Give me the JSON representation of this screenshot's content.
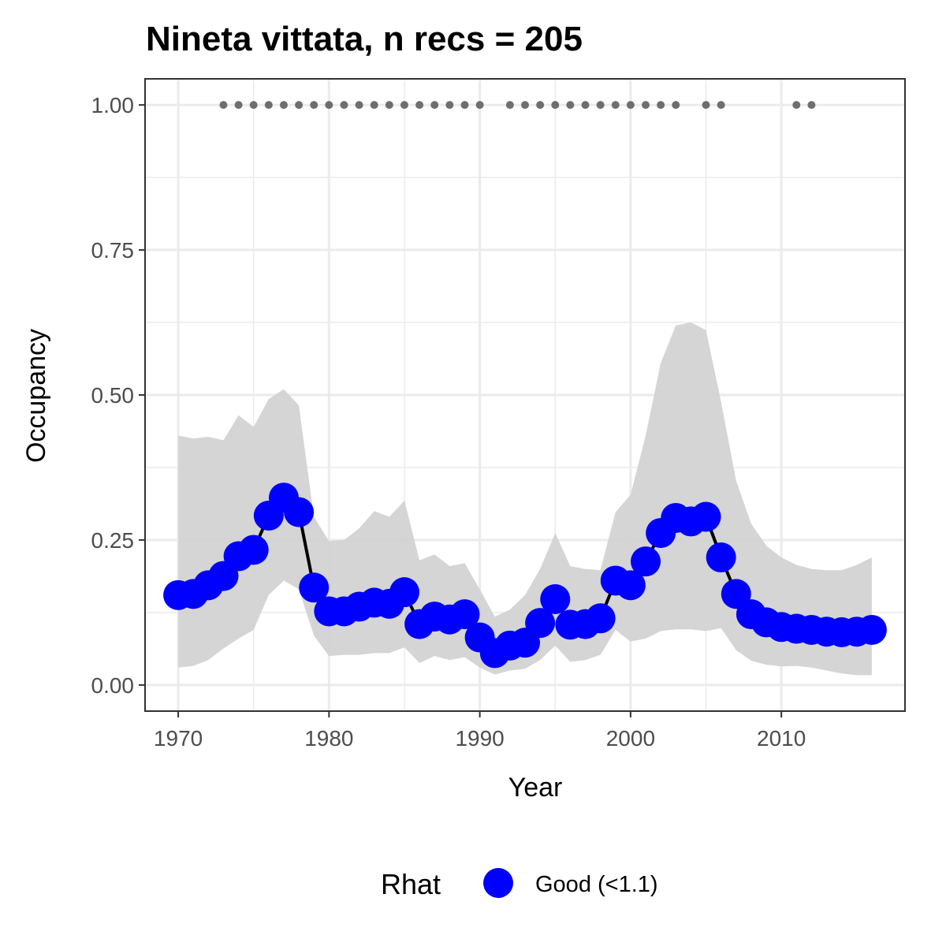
{
  "chart_data": {
    "type": "line",
    "title": "Nineta vittata, n recs = 205",
    "xlabel": "Year",
    "ylabel": "Occupancy",
    "xlim": [
      1967.8,
      2018.2
    ],
    "ylim": [
      -0.045,
      1.045
    ],
    "x_ticks": [
      1970,
      1980,
      1990,
      2000,
      2010
    ],
    "x_tick_labels": [
      "1970",
      "1980",
      "1990",
      "2000",
      "2010"
    ],
    "y_ticks": [
      0,
      0.25,
      0.5,
      0.75,
      1.0
    ],
    "y_tick_labels": [
      "0.00",
      "0.25",
      "0.50",
      "0.75",
      "1.00"
    ],
    "grid": true,
    "legend": {
      "title": "Rhat",
      "position": "bottom",
      "entries": [
        {
          "label": "Good (<1.1)",
          "color": "#0000ff"
        }
      ]
    },
    "colors": {
      "points": "#0000ff",
      "line": "#000000",
      "ribbon": "#d3d3d3",
      "records": "#6e6e6e",
      "grid": "#ebebeb",
      "panel_border": "#333333"
    },
    "x": [
      1970,
      1971,
      1972,
      1973,
      1974,
      1975,
      1976,
      1977,
      1978,
      1979,
      1980,
      1981,
      1982,
      1983,
      1984,
      1985,
      1986,
      1987,
      1988,
      1989,
      1990,
      1991,
      1992,
      1993,
      1994,
      1995,
      1996,
      1997,
      1998,
      1999,
      2000,
      2001,
      2002,
      2003,
      2004,
      2005,
      2006,
      2007,
      2008,
      2009,
      2010,
      2011,
      2012,
      2013,
      2014,
      2015,
      2016
    ],
    "series": [
      {
        "name": "Good (<1.1)",
        "values": [
          0.155,
          0.157,
          0.172,
          0.188,
          0.222,
          0.233,
          0.292,
          0.323,
          0.298,
          0.168,
          0.127,
          0.127,
          0.135,
          0.142,
          0.14,
          0.16,
          0.105,
          0.118,
          0.113,
          0.122,
          0.082,
          0.055,
          0.068,
          0.073,
          0.107,
          0.148,
          0.104,
          0.105,
          0.115,
          0.18,
          0.172,
          0.213,
          0.262,
          0.288,
          0.282,
          0.29,
          0.22,
          0.157,
          0.122,
          0.108,
          0.1,
          0.097,
          0.095,
          0.092,
          0.091,
          0.092,
          0.095
        ],
        "lower": [
          0.03,
          0.033,
          0.043,
          0.063,
          0.08,
          0.095,
          0.155,
          0.18,
          0.165,
          0.085,
          0.05,
          0.052,
          0.052,
          0.055,
          0.055,
          0.065,
          0.038,
          0.05,
          0.043,
          0.048,
          0.03,
          0.018,
          0.025,
          0.028,
          0.043,
          0.068,
          0.04,
          0.043,
          0.052,
          0.095,
          0.075,
          0.08,
          0.093,
          0.096,
          0.096,
          0.093,
          0.098,
          0.06,
          0.042,
          0.035,
          0.032,
          0.033,
          0.03,
          0.025,
          0.02,
          0.017,
          0.017
        ],
        "upper": [
          0.43,
          0.425,
          0.428,
          0.422,
          0.465,
          0.445,
          0.493,
          0.51,
          0.482,
          0.29,
          0.248,
          0.25,
          0.27,
          0.3,
          0.29,
          0.318,
          0.215,
          0.225,
          0.205,
          0.21,
          0.165,
          0.118,
          0.13,
          0.155,
          0.2,
          0.262,
          0.205,
          0.2,
          0.198,
          0.298,
          0.328,
          0.43,
          0.555,
          0.62,
          0.625,
          0.612,
          0.488,
          0.352,
          0.278,
          0.24,
          0.22,
          0.207,
          0.2,
          0.198,
          0.198,
          0.207,
          0.22
        ]
      }
    ],
    "record_years": [
      1973,
      1974,
      1975,
      1976,
      1977,
      1978,
      1979,
      1980,
      1981,
      1982,
      1983,
      1984,
      1985,
      1986,
      1987,
      1988,
      1989,
      1990,
      1992,
      1993,
      1994,
      1995,
      1996,
      1997,
      1998,
      1999,
      2000,
      2001,
      2002,
      2003,
      2005,
      2006,
      2011,
      2012
    ],
    "record_y": 1.0
  }
}
